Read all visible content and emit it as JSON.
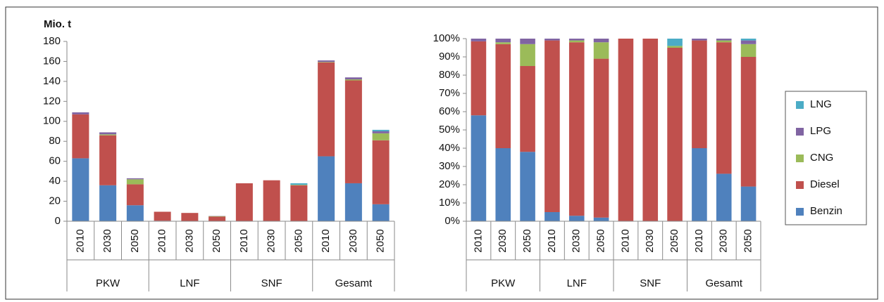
{
  "chart_data": [
    {
      "type": "stacked-bar",
      "title": "Mio. t",
      "categories": [
        "2010",
        "2030",
        "2050",
        "2010",
        "2030",
        "2050",
        "2010",
        "2030",
        "2050",
        "2010",
        "2030",
        "2050"
      ],
      "groups": [
        "PKW",
        "LNF",
        "SNF",
        "Gesamt"
      ],
      "ylim": [
        0,
        180
      ],
      "yticks": [
        0,
        20,
        40,
        60,
        80,
        100,
        120,
        140,
        160,
        180
      ],
      "grid": false,
      "series": [
        {
          "color": "#4f81bd",
          "values": [
            63,
            36,
            16,
            0.5,
            0.3,
            0.1,
            0,
            0,
            0,
            65,
            38,
            17
          ]
        },
        {
          "color": "#c0504d",
          "values": [
            44,
            50,
            21,
            9,
            8,
            4.5,
            38,
            41,
            36,
            94,
            103,
            64
          ]
        },
        {
          "color": "#9bbb59",
          "values": [
            0,
            1,
            5,
            0,
            0,
            0.5,
            0,
            0,
            0.5,
            0.5,
            1,
            7
          ]
        },
        {
          "color": "#8064a2",
          "values": [
            2,
            2,
            1,
            0,
            0,
            0.2,
            0,
            0,
            0,
            1.5,
            2,
            2
          ]
        },
        {
          "color": "#4bacc6",
          "values": [
            0,
            0,
            0,
            0,
            0,
            0,
            0,
            0,
            1.5,
            0,
            0,
            1.5
          ]
        }
      ]
    },
    {
      "type": "stacked-bar",
      "categories": [
        "2010",
        "2030",
        "2050",
        "2010",
        "2030",
        "2050",
        "2010",
        "2030",
        "2050",
        "2010",
        "2030",
        "2050"
      ],
      "groups": [
        "PKW",
        "LNF",
        "SNF",
        "Gesamt"
      ],
      "ylim": [
        0,
        100
      ],
      "yticks": [
        {
          "value": 0,
          "label": "0%"
        },
        {
          "value": 10,
          "label": "10%"
        },
        {
          "value": 20,
          "label": "20%"
        },
        {
          "value": 30,
          "label": "30%"
        },
        {
          "value": 40,
          "label": "40%"
        },
        {
          "value": 50,
          "label": "50%"
        },
        {
          "value": 60,
          "label": "60%"
        },
        {
          "value": 70,
          "label": "70%"
        },
        {
          "value": 80,
          "label": "80%"
        },
        {
          "value": 90,
          "label": "90%"
        },
        {
          "value": 100,
          "label": "100%"
        }
      ],
      "grid": false,
      "legend": "right",
      "series": [
        {
          "name": "Benzin",
          "color": "#4f81bd",
          "values": [
            58,
            40,
            38,
            5,
            3,
            2,
            0,
            0,
            0,
            40,
            26,
            19
          ]
        },
        {
          "name": "Diesel",
          "color": "#c0504d",
          "values": [
            40.5,
            57,
            47,
            94,
            95,
            87,
            100,
            100,
            95,
            59,
            72,
            71
          ]
        },
        {
          "name": "CNG",
          "color": "#9bbb59",
          "values": [
            0,
            1,
            12,
            0,
            1,
            9,
            0,
            0,
            1,
            0,
            1,
            7
          ]
        },
        {
          "name": "LPG",
          "color": "#8064a2",
          "values": [
            1.5,
            2,
            3,
            1,
            1,
            2,
            0,
            0,
            0,
            1,
            1,
            2
          ]
        },
        {
          "name": "LNG",
          "color": "#4bacc6",
          "values": [
            0,
            0,
            0,
            0,
            0,
            0,
            0,
            0,
            4,
            0,
            0,
            1
          ]
        }
      ]
    }
  ]
}
